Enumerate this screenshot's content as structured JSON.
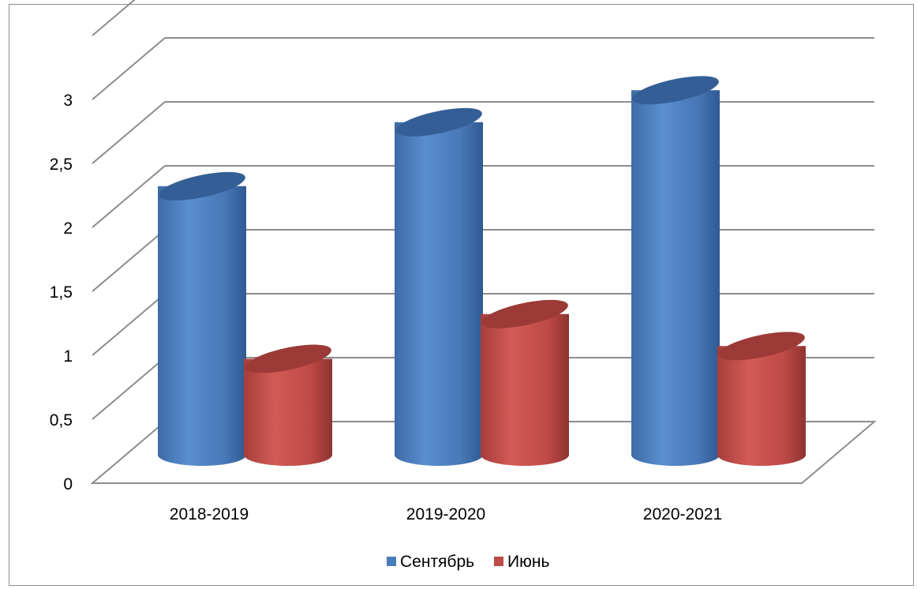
{
  "chart_data": {
    "type": "bar",
    "style": "3d-cylinder",
    "title": "",
    "xlabel": "",
    "ylabel": "",
    "categories": [
      "2018-2019",
      "2019-2020",
      "2020-2021"
    ],
    "series": [
      {
        "name": "Сентябрь",
        "values": [
          2.1,
          2.6,
          2.85
        ],
        "color": "#4a7ebb"
      },
      {
        "name": "Июнь",
        "values": [
          0.75,
          1.1,
          0.85
        ],
        "color": "#be4b48"
      }
    ],
    "ylim": [
      0,
      3.5
    ],
    "yticks": [
      "0",
      "0,5",
      "1",
      "1,5",
      "2",
      "2,5",
      "3"
    ],
    "grid": true,
    "legend": "bottom"
  }
}
